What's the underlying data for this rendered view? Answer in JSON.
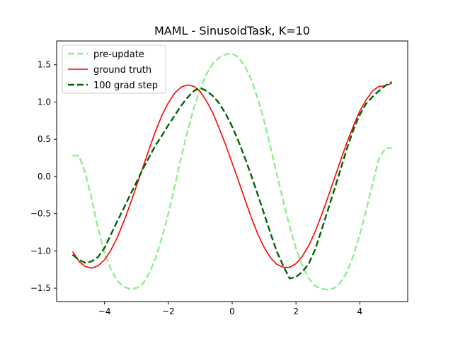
{
  "chart_data": {
    "type": "line",
    "title": "MAML - SinusoidTask, K=10",
    "xlabel": "",
    "ylabel": "",
    "xlim": [
      -5.5,
      5.5
    ],
    "ylim": [
      -1.68,
      1.82
    ],
    "x_ticks": [
      -4,
      -2,
      0,
      2,
      4
    ],
    "x_tick_labels": [
      "−4",
      "−2",
      "0",
      "2",
      "4"
    ],
    "y_ticks": [
      -1.5,
      -1.0,
      -0.5,
      0.0,
      0.5,
      1.0,
      1.5
    ],
    "y_tick_labels": [
      "−1.5",
      "−1.0",
      "−0.5",
      "0.0",
      "0.5",
      "1.0",
      "1.5"
    ],
    "grid": false,
    "legend_position": "upper-left",
    "series": [
      {
        "name": "pre-update",
        "color": "#90ee90",
        "dash": "dashed",
        "x": [
          -5.0,
          -4.8,
          -4.6,
          -4.4,
          -4.2,
          -4.0,
          -3.8,
          -3.6,
          -3.4,
          -3.2,
          -3.0,
          -2.8,
          -2.6,
          -2.4,
          -2.2,
          -2.0,
          -1.8,
          -1.6,
          -1.4,
          -1.2,
          -1.0,
          -0.8,
          -0.6,
          -0.4,
          -0.2,
          0.0,
          0.2,
          0.4,
          0.6,
          0.8,
          1.0,
          1.2,
          1.4,
          1.6,
          1.8,
          2.0,
          2.2,
          2.4,
          2.6,
          2.8,
          3.0,
          3.2,
          3.4,
          3.6,
          3.8,
          4.0,
          4.2,
          4.4,
          4.6,
          4.8,
          5.0
        ],
        "y": [
          0.28,
          0.28,
          0.05,
          -0.3,
          -0.7,
          -1.02,
          -1.25,
          -1.4,
          -1.48,
          -1.51,
          -1.5,
          -1.44,
          -1.3,
          -1.1,
          -0.82,
          -0.5,
          -0.13,
          0.25,
          0.6,
          0.92,
          1.18,
          1.38,
          1.52,
          1.6,
          1.64,
          1.65,
          1.6,
          1.48,
          1.3,
          1.05,
          0.75,
          0.4,
          0.03,
          -0.33,
          -0.67,
          -0.97,
          -1.2,
          -1.37,
          -1.47,
          -1.51,
          -1.52,
          -1.5,
          -1.42,
          -1.28,
          -1.06,
          -0.78,
          -0.45,
          -0.1,
          0.24,
          0.38,
          0.38
        ]
      },
      {
        "name": "ground truth",
        "color": "#ff0000",
        "dash": "solid",
        "x": [
          -5.0,
          -4.8,
          -4.6,
          -4.4,
          -4.2,
          -4.0,
          -3.8,
          -3.6,
          -3.4,
          -3.2,
          -3.0,
          -2.8,
          -2.6,
          -2.4,
          -2.2,
          -2.0,
          -1.8,
          -1.6,
          -1.4,
          -1.2,
          -1.0,
          -0.8,
          -0.6,
          -0.4,
          -0.2,
          0.0,
          0.2,
          0.4,
          0.6,
          0.8,
          1.0,
          1.2,
          1.4,
          1.6,
          1.8,
          2.0,
          2.2,
          2.4,
          2.6,
          2.8,
          3.0,
          3.2,
          3.4,
          3.6,
          3.8,
          4.0,
          4.2,
          4.4,
          4.6,
          4.8,
          5.0
        ],
        "y": [
          -1.01,
          -1.14,
          -1.21,
          -1.23,
          -1.2,
          -1.12,
          -0.99,
          -0.82,
          -0.61,
          -0.38,
          -0.13,
          0.12,
          0.37,
          0.61,
          0.82,
          0.99,
          1.12,
          1.2,
          1.23,
          1.21,
          1.14,
          1.01,
          0.85,
          0.64,
          0.42,
          0.18,
          -0.06,
          -0.31,
          -0.55,
          -0.77,
          -0.95,
          -1.09,
          -1.18,
          -1.22,
          -1.22,
          -1.17,
          -1.07,
          -0.93,
          -0.74,
          -0.52,
          -0.28,
          -0.03,
          0.22,
          0.46,
          0.68,
          0.88,
          1.03,
          1.15,
          1.21,
          1.22,
          1.25
        ]
      },
      {
        "name": "100 grad step",
        "color": "#006400",
        "dash": "dashed",
        "x": [
          -5.0,
          -4.8,
          -4.6,
          -4.4,
          -4.2,
          -4.0,
          -3.8,
          -3.6,
          -3.4,
          -3.2,
          -3.0,
          -2.8,
          -2.6,
          -2.4,
          -2.2,
          -2.0,
          -1.8,
          -1.6,
          -1.4,
          -1.2,
          -1.0,
          -0.8,
          -0.6,
          -0.4,
          -0.2,
          0.0,
          0.2,
          0.4,
          0.6,
          0.8,
          1.0,
          1.2,
          1.4,
          1.6,
          1.8,
          2.0,
          2.2,
          2.4,
          2.6,
          2.8,
          3.0,
          3.2,
          3.4,
          3.6,
          3.8,
          4.0,
          4.2,
          4.4,
          4.6,
          4.8,
          5.0
        ],
        "y": [
          -1.05,
          -1.12,
          -1.16,
          -1.14,
          -1.08,
          -0.96,
          -0.78,
          -0.6,
          -0.43,
          -0.25,
          -0.08,
          0.1,
          0.26,
          0.42,
          0.55,
          0.69,
          0.82,
          0.95,
          1.06,
          1.15,
          1.19,
          1.15,
          1.08,
          0.98,
          0.84,
          0.67,
          0.47,
          0.25,
          0.01,
          -0.24,
          -0.5,
          -0.76,
          -1.01,
          -1.2,
          -1.37,
          -1.35,
          -1.28,
          -1.17,
          -0.98,
          -0.72,
          -0.45,
          -0.18,
          0.1,
          0.38,
          0.63,
          0.83,
          0.98,
          1.07,
          1.15,
          1.22,
          1.27
        ]
      }
    ]
  }
}
